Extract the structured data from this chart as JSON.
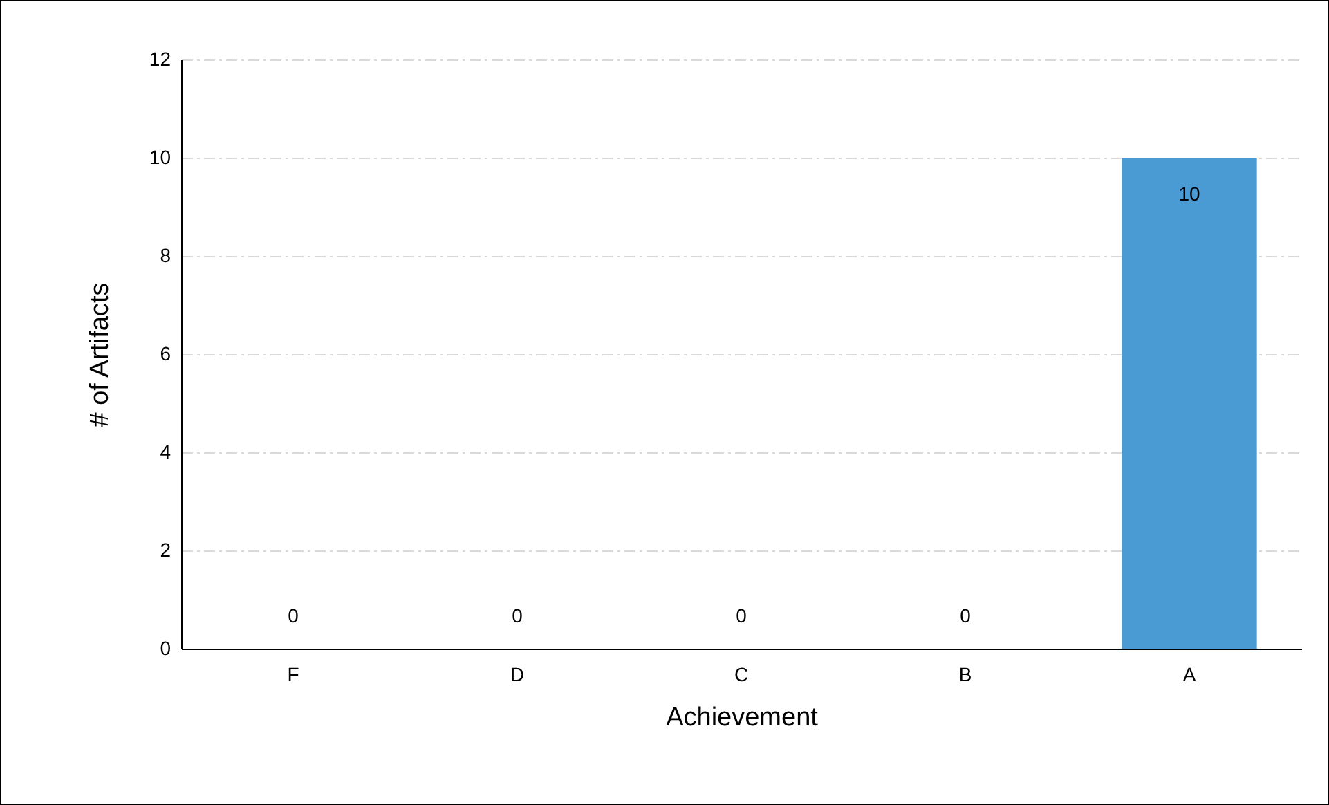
{
  "chart_data": {
    "type": "bar",
    "xlabel": "Achievement",
    "ylabel": "# of Artifacts",
    "categories": [
      "F",
      "D",
      "C",
      "B",
      "A"
    ],
    "values": [
      0,
      0,
      0,
      0,
      10
    ],
    "color": "#4a9ad4",
    "ylim": [
      0,
      12
    ],
    "yticks": [
      0,
      2,
      4,
      6,
      8,
      10,
      12
    ],
    "grid": "y",
    "data_labels": true
  }
}
